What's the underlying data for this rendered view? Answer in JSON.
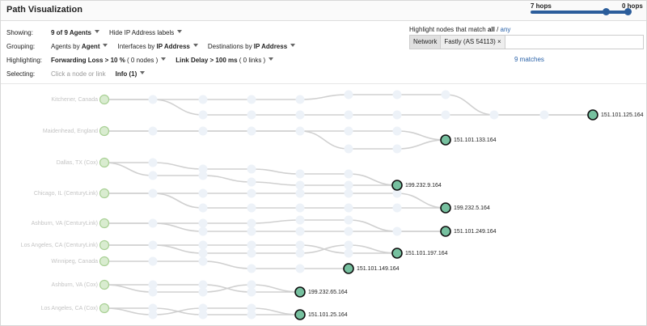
{
  "header": {
    "title": "Path Visualization",
    "hops_max": "7 hops",
    "hops_min": "0 hops"
  },
  "controls": [
    {
      "label": "Showing:",
      "options": [
        {
          "dropdown": true,
          "parts": [
            {
              "text": "9 of 9 Agents",
              "bold": true
            }
          ]
        },
        {
          "dropdown": true,
          "parts": [
            {
              "text": "Hide IP Address labels"
            }
          ]
        }
      ]
    },
    {
      "label": "Grouping:",
      "options": [
        {
          "dropdown": true,
          "parts": [
            {
              "text": "Agents by "
            },
            {
              "text": "Agent",
              "bold": true
            }
          ]
        },
        {
          "dropdown": true,
          "parts": [
            {
              "text": "Interfaces by "
            },
            {
              "text": "IP Address",
              "bold": true
            }
          ]
        },
        {
          "dropdown": true,
          "parts": [
            {
              "text": "Destinations by "
            },
            {
              "text": "IP Address",
              "bold": true
            }
          ]
        }
      ]
    },
    {
      "label": "Highlighting:",
      "options": [
        {
          "dropdown": true,
          "parts": [
            {
              "text": "Forwarding Loss > 10 %",
              "bold": true
            },
            {
              "text": " ( 0 nodes )"
            }
          ]
        },
        {
          "dropdown": true,
          "parts": [
            {
              "text": "Link Delay > 100 ms",
              "bold": true
            },
            {
              "text": " ( 0 links )"
            }
          ]
        }
      ]
    },
    {
      "label": "Selecting:",
      "options": [
        {
          "dropdown": false,
          "muted": true,
          "parts": [
            {
              "text": "Click a node or link"
            }
          ]
        },
        {
          "dropdown": true,
          "parts": [
            {
              "text": "Info (1)",
              "bold": true
            }
          ]
        }
      ]
    }
  ],
  "filter": {
    "heading": [
      {
        "text": "Highlight nodes that match "
      },
      {
        "text": "all",
        "bold": true
      },
      {
        "text": " / "
      },
      {
        "text": "any",
        "link": true
      }
    ],
    "tag_key": "Network",
    "tag_value": "Fastly (AS 54113)",
    "remove": "×",
    "matches": "9 matches"
  },
  "agents": [
    "Kitchener, Canada",
    "Maidenhead, England",
    "Dallas, TX (Cox)",
    "Chicago, IL (CenturyLink)",
    "Ashburn, VA (CenturyLink)",
    "Los Angeles, CA (CenturyLink)",
    "Winnipeg, Canada",
    "Ashburn, VA (Cox)",
    "Los Angeles, CA (Cox)"
  ],
  "destinations": [
    "151.101.125.164",
    "151.101.133.164",
    "199.232.9.164",
    "199.232.5.164",
    "151.101.249.164",
    "151.101.197.164",
    "151.101.149.164",
    "199.232.65.164",
    "151.101.25.164"
  ]
}
